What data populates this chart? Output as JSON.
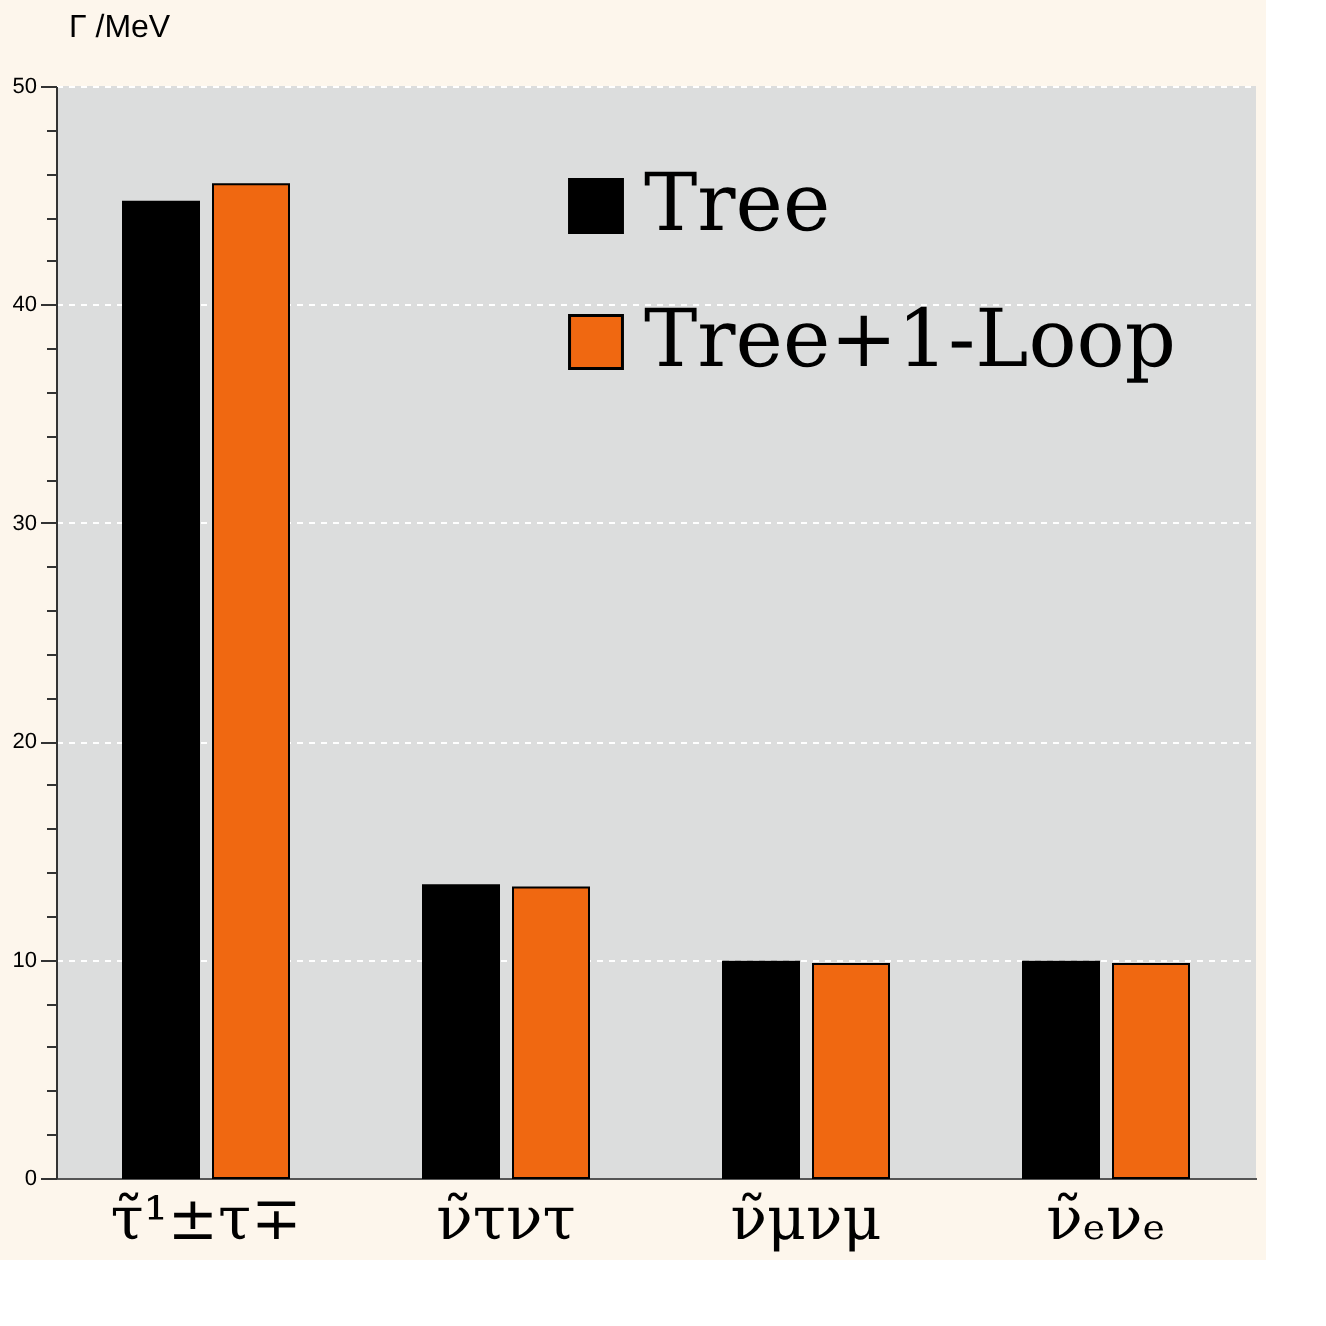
{
  "chart_data": {
    "type": "bar",
    "ylabel": "Γ /MeV",
    "categories": [
      "τ̃¹±τ∓",
      "ν̃τντ",
      "ν̃μνμ",
      "ν̃ₑνₑ"
    ],
    "series": [
      {
        "name": "Tree",
        "color": "#000000",
        "values": [
          44.7,
          13.4,
          9.9,
          9.9
        ]
      },
      {
        "name": "Tree+1-Loop",
        "color": "#f06811",
        "values": [
          45.5,
          13.3,
          9.8,
          9.8
        ]
      }
    ],
    "ylim": [
      0,
      50
    ],
    "yticks": [
      0,
      {
        "value": 2,
        "label": null
      },
      {
        "value": 4,
        "label": null
      },
      {
        "value": 6,
        "label": null
      },
      {
        "value": 8,
        "label": null
      },
      10,
      {
        "value": 12,
        "label": null
      },
      {
        "value": 14,
        "label": null
      },
      {
        "value": 16,
        "label": null
      },
      {
        "value": 18,
        "label": null
      },
      20,
      {
        "value": 22,
        "label": null
      },
      {
        "value": 24,
        "label": null
      },
      {
        "value": 26,
        "label": null
      },
      {
        "value": 28,
        "label": null
      },
      30,
      {
        "value": 32,
        "label": null
      },
      {
        "value": 34,
        "label": null
      },
      {
        "value": 36,
        "label": null
      },
      {
        "value": 38,
        "label": null
      },
      40,
      {
        "value": 42,
        "label": null
      },
      {
        "value": 44,
        "label": null
      },
      {
        "value": 46,
        "label": null
      },
      {
        "value": 48,
        "label": null
      },
      50
    ],
    "grid": "y",
    "legend": "top right"
  }
}
